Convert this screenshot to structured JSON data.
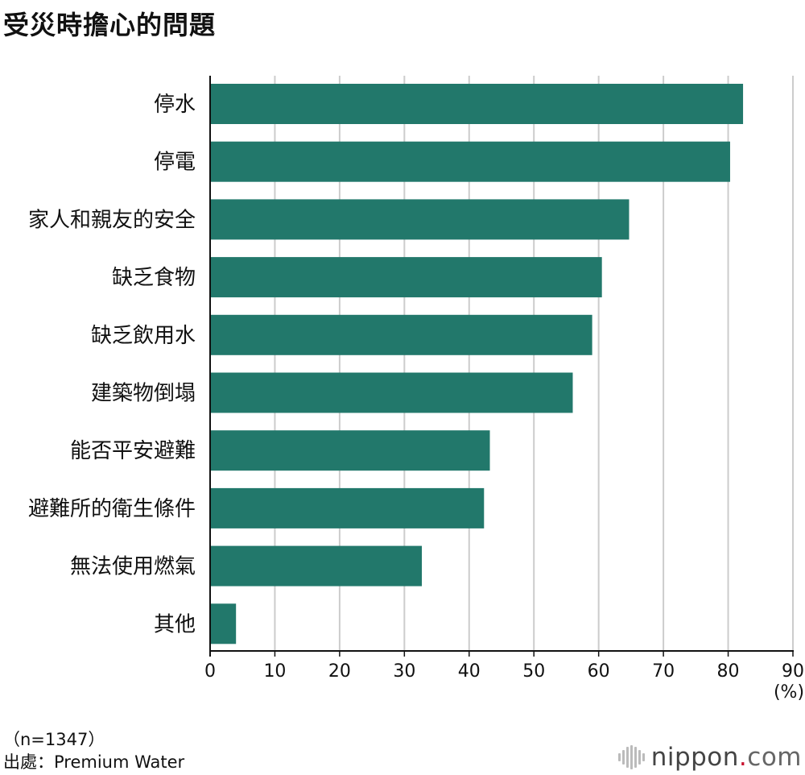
{
  "title": "受災時擔心的問題",
  "footnote_n": "（n=1347）",
  "footnote_source": "出處：Premium Water",
  "logo": {
    "name": "nippon",
    "dot": ".",
    "tld": "com",
    "icon": "sound-bars-icon"
  },
  "colors": {
    "bar": "#22786b",
    "grid": "#cccccc",
    "axis": "#111111"
  },
  "chart_data": {
    "type": "bar",
    "orientation": "horizontal",
    "title": "受災時擔心的問題",
    "unit": "(%)",
    "categories": [
      "停水",
      "停電",
      "家人和親友的安全",
      "缺乏食物",
      "缺乏飲用水",
      "建築物倒塌",
      "能否平安避難",
      "避難所的衛生條件",
      "無法使用燃氣",
      "其他"
    ],
    "values": [
      82.3,
      80.3,
      64.7,
      60.5,
      59.0,
      56.0,
      43.2,
      42.3,
      32.7,
      4.0
    ],
    "xlim": [
      0,
      90
    ],
    "xticks": [
      0,
      10,
      20,
      30,
      40,
      50,
      60,
      70,
      80,
      90
    ],
    "grid": true
  }
}
